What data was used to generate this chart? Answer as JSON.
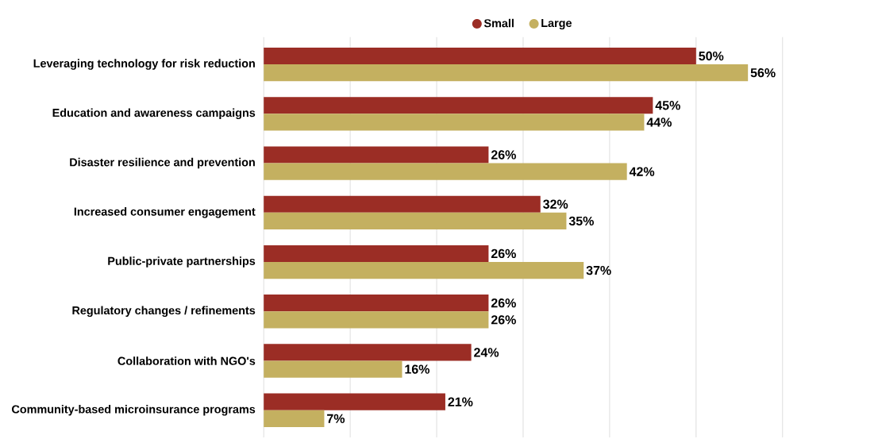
{
  "chart_data": {
    "type": "bar",
    "orientation": "horizontal",
    "categories": [
      "Leveraging technology for risk reduction",
      "Education and awareness campaigns",
      "Disaster resilience and prevention",
      "Increased consumer engagement",
      "Public-private partnerships",
      "Regulatory changes / refinements",
      "Collaboration with NGO's",
      "Community-based microinsurance programs"
    ],
    "series": [
      {
        "name": "Small",
        "color": "#9b2d25",
        "values": [
          50,
          45,
          26,
          32,
          26,
          26,
          24,
          21
        ],
        "value_labels": [
          "50%",
          "45%",
          "26%",
          "32%",
          "26%",
          "26%",
          "24%",
          "21%"
        ]
      },
      {
        "name": "Large",
        "color": "#c4b060",
        "values": [
          56,
          44,
          42,
          35,
          37,
          26,
          16,
          7
        ],
        "value_labels": [
          "56%",
          "44%",
          "42%",
          "35%",
          "37%",
          "26%",
          "16%",
          "7%"
        ]
      }
    ],
    "xlim": [
      0,
      60
    ],
    "xticks": [
      {
        "value": 0,
        "label": null
      },
      {
        "value": 10,
        "label": null
      },
      {
        "value": 20,
        "label": null
      },
      {
        "value": 30,
        "label": null
      },
      {
        "value": 40,
        "label": null
      },
      {
        "value": 50,
        "label": null
      },
      {
        "value": 60,
        "label": null
      }
    ],
    "tick_labels": "y",
    "grid": "x",
    "legend": "top"
  }
}
